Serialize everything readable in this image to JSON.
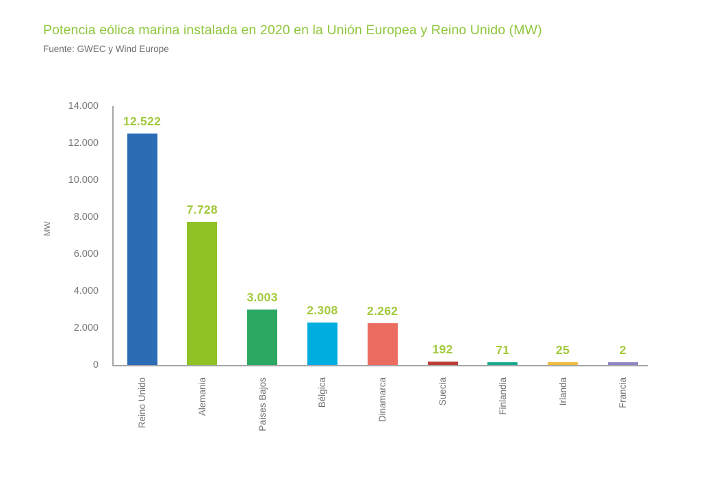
{
  "chart_data": {
    "type": "bar",
    "title": "Potencia eólica marina instalada en 2020 en la Unión Europea y Reino Unido (MW)",
    "subtitle": "Fuente: GWEC y Wind Europe",
    "categories": [
      "Reino Unido",
      "Alemania",
      "Países Bajos",
      "Bélgica",
      "Dinamarca",
      "Suecia",
      "Finlandia",
      "Irlanda",
      "Francia"
    ],
    "values": [
      12522,
      7728,
      3003,
      2308,
      2262,
      192,
      71,
      25,
      2
    ],
    "value_labels": [
      "12.522",
      "7.728",
      "3.003",
      "2.308",
      "2.262",
      "192",
      "71",
      "25",
      "2"
    ],
    "bar_colors": [
      "#2b6cb5",
      "#90c226",
      "#2ca863",
      "#00addf",
      "#ec6b60",
      "#bf3d36",
      "#17a78d",
      "#eebb3d",
      "#8d86c3"
    ],
    "xlabel": "",
    "ylabel": "MW",
    "ylim": [
      0,
      14000
    ],
    "yticks": [
      0,
      2000,
      4000,
      6000,
      8000,
      10000,
      12000,
      14000
    ],
    "ytick_labels": [
      "0",
      "2.000",
      "4.000",
      "6.000",
      "8.000",
      "10.000",
      "12.000",
      "14.000"
    ],
    "grid": false,
    "legend": false,
    "colors": {
      "title_green": "#8fc63c",
      "value_label_green": "#a2c93c",
      "subtitle_gray": "#6d6e71",
      "tick_gray": "#77787b",
      "category_gray": "#6f7072",
      "axis_gray": "#a4a6a9",
      "background": "#ffffff"
    }
  }
}
